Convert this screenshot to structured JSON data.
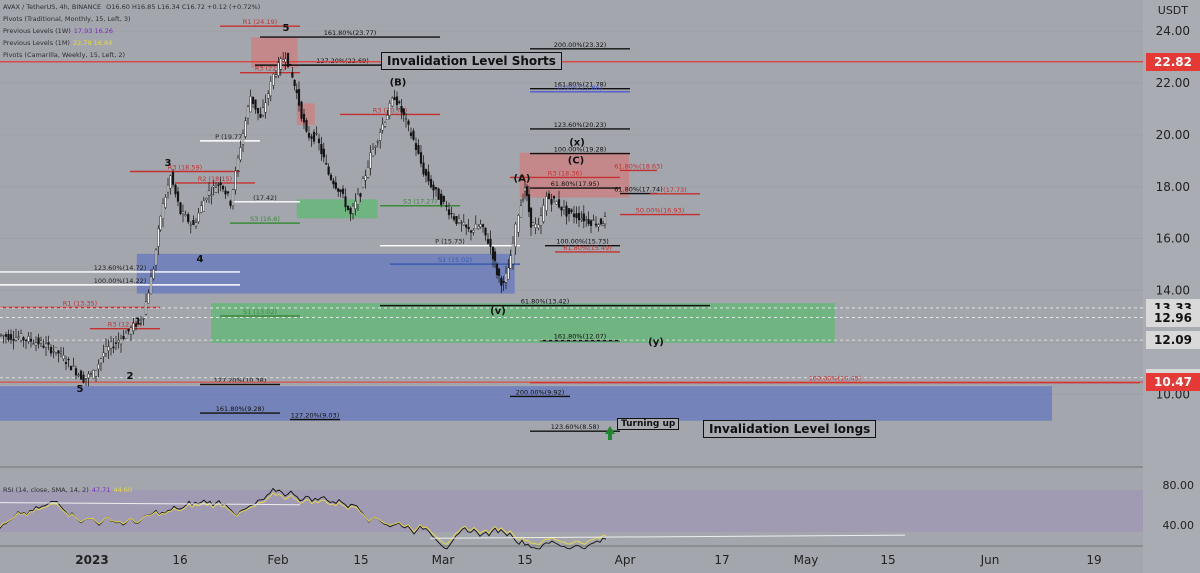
{
  "header": {
    "symbol": "AVAX / TetherUS, 4h, BINANCE",
    "ohlc": "O16.60  H16.85  L16.34  C16.72  +0.12 (+0.72%)",
    "lines": [
      {
        "text": "Pivots (Traditional, Monthly, 15, Left, 3)",
        "extra": ""
      },
      {
        "text": "Previous Levels (1W)",
        "extra": "17.93  16.26"
      },
      {
        "text": "Previous Levels (1M)",
        "extra": "22.79  16.84"
      },
      {
        "text": "Pivots (Camarilla, Weekly, 15, Left, 2)",
        "extra": ""
      }
    ]
  },
  "currency": "USDT",
  "price_tags": [
    {
      "value": "22.82",
      "style": "red"
    },
    {
      "value": "13.33",
      "style": "grey"
    },
    {
      "value": "12.96",
      "style": "grey"
    },
    {
      "value": "12.09",
      "style": "grey"
    },
    {
      "value": "10.64",
      "style": "grey"
    },
    {
      "value": "10.47",
      "style": "red"
    }
  ],
  "rsi": {
    "label": "RSI (14, close, SMA, 14, 2)",
    "v1": "47.71",
    "v2": "44.60",
    "ticks": [
      "80.00",
      "40.00"
    ]
  },
  "chart_data": {
    "type": "candlestick",
    "y_axis_ticks": [
      "24.00",
      "22.00",
      "20.00",
      "18.00",
      "16.00",
      "14.00",
      "12.00",
      "10.00"
    ],
    "ylim": [
      7.2,
      25.2
    ],
    "x_axis_labels": [
      "2023",
      "16",
      "Feb",
      "15",
      "Mar",
      "15",
      "Apr",
      "17",
      "May",
      "15",
      "Jun",
      "19"
    ],
    "price_path": [
      {
        "t": 0,
        "p": 12.3
      },
      {
        "t": 20,
        "p": 12.2
      },
      {
        "t": 40,
        "p": 12.0
      },
      {
        "t": 60,
        "p": 11.6
      },
      {
        "t": 75,
        "p": 11.0
      },
      {
        "t": 85,
        "p": 10.6
      },
      {
        "t": 95,
        "p": 10.8
      },
      {
        "t": 105,
        "p": 11.6
      },
      {
        "t": 120,
        "p": 12.1
      },
      {
        "t": 135,
        "p": 12.6
      },
      {
        "t": 145,
        "p": 13.1
      },
      {
        "t": 155,
        "p": 14.9
      },
      {
        "t": 162,
        "p": 16.9
      },
      {
        "t": 172,
        "p": 18.4
      },
      {
        "t": 182,
        "p": 17.0
      },
      {
        "t": 195,
        "p": 16.5
      },
      {
        "t": 208,
        "p": 17.7
      },
      {
        "t": 222,
        "p": 18.2
      },
      {
        "t": 232,
        "p": 17.4
      },
      {
        "t": 242,
        "p": 19.6
      },
      {
        "t": 252,
        "p": 21.5
      },
      {
        "t": 262,
        "p": 20.6
      },
      {
        "t": 275,
        "p": 22.3
      },
      {
        "t": 287,
        "p": 23.1
      },
      {
        "t": 298,
        "p": 21.6
      },
      {
        "t": 308,
        "p": 20.0
      },
      {
        "t": 318,
        "p": 19.9
      },
      {
        "t": 330,
        "p": 18.5
      },
      {
        "t": 342,
        "p": 17.8
      },
      {
        "t": 352,
        "p": 16.9
      },
      {
        "t": 362,
        "p": 17.8
      },
      {
        "t": 372,
        "p": 19.2
      },
      {
        "t": 384,
        "p": 20.4
      },
      {
        "t": 396,
        "p": 21.5
      },
      {
        "t": 405,
        "p": 20.7
      },
      {
        "t": 415,
        "p": 19.8
      },
      {
        "t": 425,
        "p": 18.6
      },
      {
        "t": 435,
        "p": 17.9
      },
      {
        "t": 448,
        "p": 17.2
      },
      {
        "t": 458,
        "p": 16.7
      },
      {
        "t": 470,
        "p": 16.3
      },
      {
        "t": 482,
        "p": 16.5
      },
      {
        "t": 492,
        "p": 15.7
      },
      {
        "t": 498,
        "p": 14.7
      },
      {
        "t": 505,
        "p": 14.2
      },
      {
        "t": 512,
        "p": 15.2
      },
      {
        "t": 520,
        "p": 17.0
      },
      {
        "t": 526,
        "p": 18.0
      },
      {
        "t": 532,
        "p": 16.6
      },
      {
        "t": 540,
        "p": 16.4
      },
      {
        "t": 548,
        "p": 17.6
      },
      {
        "t": 558,
        "p": 17.4
      },
      {
        "t": 568,
        "p": 17.0
      },
      {
        "t": 578,
        "p": 16.9
      },
      {
        "t": 590,
        "p": 16.7
      },
      {
        "t": 600,
        "p": 16.6
      },
      {
        "t": 606,
        "p": 16.72
      }
    ],
    "zones": [
      {
        "name": "invalidation-shorts-zone",
        "color": "#e07070",
        "y": [
          22.6,
          23.75
        ],
        "x": [
          0.22,
          0.26
        ]
      },
      {
        "name": "red-zone-2",
        "color": "#e07070",
        "y": [
          20.4,
          21.2
        ],
        "x": [
          0.26,
          0.275
        ]
      },
      {
        "name": "red-zone-right",
        "color": "#e07070",
        "y": [
          17.6,
          19.3
        ],
        "x": [
          0.455,
          0.55
        ]
      },
      {
        "name": "green-zone-small",
        "color": "#48c060",
        "y": [
          16.8,
          17.5
        ],
        "x": [
          0.26,
          0.33
        ]
      },
      {
        "name": "blue-zone-upper",
        "color": "#4f68c4",
        "y": [
          13.9,
          15.4
        ],
        "x": [
          0.12,
          0.45
        ]
      },
      {
        "name": "green-zone-main",
        "color": "#48c060",
        "y": [
          12.0,
          13.5
        ],
        "x": [
          0.185,
          0.73
        ]
      },
      {
        "name": "blue-zone-lower",
        "color": "#4f68c4",
        "y": [
          9.0,
          10.3
        ],
        "x": [
          0.0,
          0.92
        ]
      }
    ],
    "levels": [
      {
        "label": "R1 (24.19)",
        "price": 24.19,
        "color": "#c43030"
      },
      {
        "label": "161.80%(23.77)",
        "price": 23.77,
        "color": "#111"
      },
      {
        "label": "200.00%(23.32)",
        "price": 23.32,
        "color": "#111"
      },
      {
        "label": "127.20%(22.69)",
        "price": 22.69,
        "color": "#111"
      },
      {
        "label": "R3 (22.4)",
        "price": 22.4,
        "color": "#c43030"
      },
      {
        "label": "161.80%(21.78)",
        "price": 21.78,
        "color": "#111"
      },
      {
        "label": "0.00%(21.66)",
        "price": 21.66,
        "color": "#4f5bd0"
      },
      {
        "label": "R3 (20.79)",
        "price": 20.79,
        "color": "#c43030"
      },
      {
        "label": "123.60%(20.23)",
        "price": 20.23,
        "color": "#111"
      },
      {
        "label": "P (19.77)",
        "price": 19.77,
        "color": "#fff"
      },
      {
        "label": "100.00%(19.28)",
        "price": 19.28,
        "color": "#111"
      },
      {
        "label": "61.80%(18.63)",
        "price": 18.63,
        "color": "#c43030"
      },
      {
        "label": "R3 (18.59)",
        "price": 18.59,
        "color": "#c43030"
      },
      {
        "label": "R3 (18.36)",
        "price": 18.36,
        "color": "#c43030"
      },
      {
        "label": "R2 (18.15)",
        "price": 18.15,
        "color": "#c43030"
      },
      {
        "label": "61.80%(17.95)",
        "price": 17.95,
        "color": "#111"
      },
      {
        "label": "61.80%(17.74)",
        "price": 17.74,
        "color": "#111"
      },
      {
        "label": "(17.73)",
        "price": 17.73,
        "color": "#c43030"
      },
      {
        "label": "(17.42)",
        "price": 17.42,
        "color": "#fff"
      },
      {
        "label": "S3 (17.27)",
        "price": 17.27,
        "color": "#3a8a3a"
      },
      {
        "label": "50.00%(16.93)",
        "price": 16.93,
        "color": "#c43030"
      },
      {
        "label": "S3 (16.6)",
        "price": 16.6,
        "color": "#3a8a3a"
      },
      {
        "label": "P (15.73)",
        "price": 15.73,
        "color": "#fff"
      },
      {
        "label": "100.00%(15.73)",
        "price": 15.73,
        "color": "#111"
      },
      {
        "label": "61.80%(15.49)",
        "price": 15.49,
        "color": "#c43030"
      },
      {
        "label": "S1 (15.02)",
        "price": 15.02,
        "color": "#3a5ab0"
      },
      {
        "label": "123.60%(14.72)",
        "price": 14.72,
        "color": "#fff"
      },
      {
        "label": "100.00%(14.22)",
        "price": 14.22,
        "color": "#fff"
      },
      {
        "label": "61.80%(13.42)",
        "price": 13.42,
        "color": "#111"
      },
      {
        "label": "R1 (13.35)",
        "price": 13.35,
        "color": "#c43030"
      },
      {
        "label": "S1 (13.02)",
        "price": 13.02,
        "color": "#3a8a3a"
      },
      {
        "label": "R3 (12.53)",
        "price": 12.53,
        "color": "#c43030"
      },
      {
        "label": "161.80%(12.07)",
        "price": 12.07,
        "color": "#111"
      },
      {
        "label": "100.00%(10.45)",
        "price": 10.45,
        "color": "#c43030"
      },
      {
        "label": "127.20%(10.38)",
        "price": 10.38,
        "color": "#111"
      },
      {
        "label": "200.00%(9.92)",
        "price": 9.92,
        "color": "#111"
      },
      {
        "label": "161.80%(9.28)",
        "price": 9.28,
        "color": "#111"
      },
      {
        "label": "127.20%(9.03)",
        "price": 9.03,
        "color": "#111"
      },
      {
        "label": "123.60%(8.58)",
        "price": 8.58,
        "color": "#111"
      }
    ],
    "wave_labels": [
      {
        "text": "5",
        "t": 286,
        "p": 24.0
      },
      {
        "text": "3",
        "t": 168,
        "p": 18.8
      },
      {
        "text": "4",
        "t": 200,
        "p": 15.1
      },
      {
        "text": "1",
        "t": 138,
        "p": 12.7
      },
      {
        "text": "2",
        "t": 130,
        "p": 10.6
      },
      {
        "text": "5",
        "t": 80,
        "p": 10.1
      },
      {
        "text": "(x)",
        "t": 577,
        "p": 19.6
      },
      {
        "text": "(y)",
        "t": 656,
        "p": 11.9
      },
      {
        "text": "(v)",
        "t": 498,
        "p": 13.1
      },
      {
        "text": "(B)",
        "t": 398,
        "p": 21.9
      },
      {
        "text": "(C)",
        "t": 576,
        "p": 18.9
      },
      {
        "text": "(A)",
        "t": 522,
        "p": 18.2
      }
    ],
    "annotations": {
      "invalidation_shorts": "Invalidation Level Shorts",
      "invalidation_longs": "Invalidation Level longs",
      "turning_up": "Turning up"
    }
  }
}
